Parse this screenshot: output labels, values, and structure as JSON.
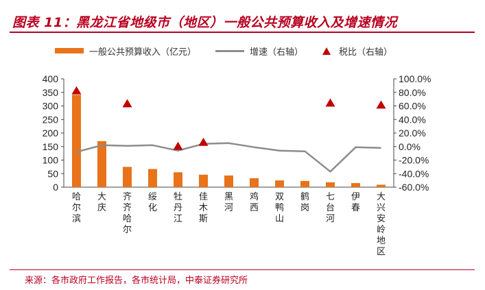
{
  "title": "图表 11：黑龙江省地级市（地区）一般公共预算收入及增速情况",
  "source": "来源：各市政府工作报告，各市统计局，中泰证券研究所",
  "colors": {
    "bar": "#e8731a",
    "line": "#8c8c8c",
    "marker": "#c00000",
    "accent": "#b8001f"
  },
  "chart_data": {
    "type": "bar",
    "categories": [
      "哈尔滨",
      "大庆",
      "齐齐哈尔",
      "绥化",
      "牡丹江",
      "佳木斯",
      "黑河",
      "鸡西",
      "双鸭山",
      "鹤岗",
      "七台河",
      "伊春",
      "大兴安岭地区"
    ],
    "series": [
      {
        "name": "一般公共预算收入（亿元）",
        "type": "bar",
        "axis": "left",
        "values": [
          341,
          170,
          75,
          67,
          55,
          46,
          43,
          33,
          25,
          23,
          18,
          15,
          9
        ]
      },
      {
        "name": "增速（右轴）",
        "type": "line",
        "axis": "right",
        "values": [
          -8,
          2,
          1,
          2,
          -6,
          4,
          5,
          -1,
          -6,
          -7,
          -37,
          -1,
          -2
        ]
      },
      {
        "name": "税比（右轴）",
        "type": "scatter",
        "axis": "right",
        "points": [
          {
            "category": "哈尔滨",
            "value": 82
          },
          {
            "category": "齐齐哈尔",
            "value": 63
          },
          {
            "category": "牡丹江",
            "value": 0
          },
          {
            "category": "佳木斯",
            "value": 6
          },
          {
            "category": "七台河",
            "value": 64
          },
          {
            "category": "大兴安岭地区",
            "value": 61
          }
        ]
      }
    ],
    "ylim": [
      0,
      400
    ],
    "yticks": [
      "0",
      "50",
      "100",
      "150",
      "200",
      "250",
      "300",
      "350",
      "400"
    ],
    "y2lim": [
      -60,
      100
    ],
    "y2ticks": [
      "-60.0%",
      "-40.0%",
      "-20.0%",
      "0.0%",
      "20.0%",
      "40.0%",
      "60.0%",
      "80.0%",
      "100.0%"
    ],
    "grid": false,
    "legend_position": "top"
  }
}
